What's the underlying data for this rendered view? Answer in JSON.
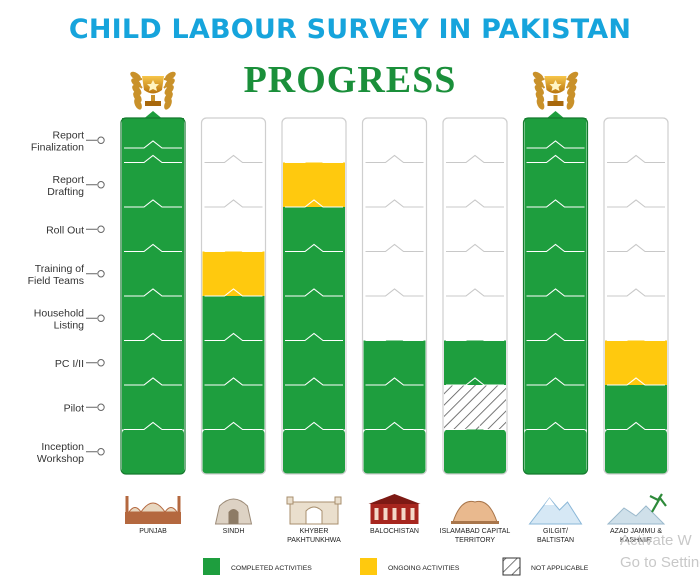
{
  "title": "CHILD LABOUR SURVEY IN PAKISTAN",
  "subtitle": "PROGRESS",
  "watermark": [
    "Activate W",
    "Go to Setting"
  ],
  "chart_data": {
    "type": "table",
    "stages_top_to_bottom": [
      "Report\nFinalization",
      "Report\nDrafting",
      "Roll Out",
      "Training of\nField Teams",
      "Household\nListing",
      "PC I/II",
      "Pilot",
      "Inception\nWorkshop"
    ],
    "provinces": [
      {
        "label": "PUNJAB",
        "icon": "badshahi-mosque-icon",
        "trophy": true,
        "status": [
          "completed",
          "completed",
          "completed",
          "completed",
          "completed",
          "completed",
          "completed",
          "completed"
        ]
      },
      {
        "label": "SINDH",
        "icon": "mazar-e-quaid-icon",
        "trophy": false,
        "status": [
          "completed",
          "completed",
          "completed",
          "completed",
          "ongoing",
          "none",
          "none",
          "none"
        ]
      },
      {
        "label": "KHYBER\nPAKHTUNKHWA",
        "icon": "khyber-gate-icon",
        "trophy": false,
        "status": [
          "completed",
          "completed",
          "completed",
          "completed",
          "completed",
          "completed",
          "ongoing",
          "none"
        ]
      },
      {
        "label": "BALOCHISTAN",
        "icon": "quaid-residency-icon",
        "trophy": false,
        "status": [
          "completed",
          "completed",
          "completed",
          "none",
          "none",
          "none",
          "none",
          "none"
        ]
      },
      {
        "label": "ISLAMABAD CAPITAL\nTERRITORY",
        "icon": "pakistan-monument-icon",
        "trophy": false,
        "status": [
          "completed",
          "not_applicable",
          "completed",
          "none",
          "none",
          "none",
          "none",
          "none"
        ]
      },
      {
        "label": "GILGIT/\nBALTISTAN",
        "icon": "mountains-icon",
        "trophy": true,
        "status": [
          "completed",
          "completed",
          "completed",
          "completed",
          "completed",
          "completed",
          "completed",
          "completed"
        ]
      },
      {
        "label": "AZAD JAMMU &\nKASHMIR",
        "icon": "kashmir-landscape-icon",
        "trophy": false,
        "status": [
          "completed",
          "completed",
          "ongoing",
          "none",
          "none",
          "none",
          "none",
          "none"
        ]
      }
    ],
    "legend": [
      {
        "key": "completed",
        "label": "COMPLETED ACTIVITIES",
        "color": "#1e9e3e"
      },
      {
        "key": "ongoing",
        "label": "ONGOING ACTIVITIES",
        "color": "#ffc90e"
      },
      {
        "key": "not_applicable",
        "label": "NOT APPLICABLE",
        "color": "hatched"
      }
    ]
  }
}
